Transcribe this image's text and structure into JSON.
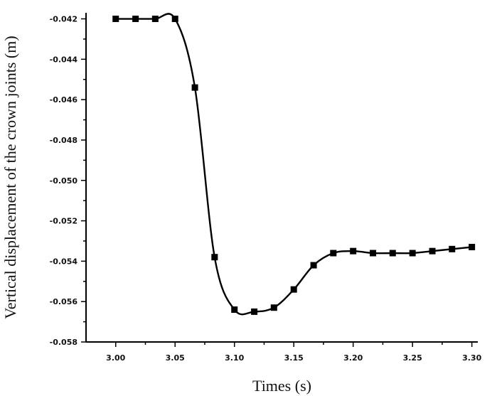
{
  "chart_data": {
    "type": "line",
    "title": "",
    "xlabel": "Times (s)",
    "ylabel": "Vertical displacement of the crown joints (m)",
    "xlim": [
      2.975,
      3.305
    ],
    "ylim": [
      -0.058,
      -0.0417
    ],
    "x_ticks": [
      3.0,
      3.05,
      3.1,
      3.15,
      3.2,
      3.25,
      3.3
    ],
    "x_tick_labels": [
      "3.00",
      "3.05",
      "3.10",
      "3.15",
      "3.20",
      "3.25",
      "3.30"
    ],
    "y_ticks": [
      -0.042,
      -0.044,
      -0.046,
      -0.048,
      -0.05,
      -0.052,
      -0.054,
      -0.056,
      -0.058
    ],
    "y_tick_labels": [
      "-0.042",
      "-0.044",
      "-0.046",
      "-0.048",
      "-0.050",
      "-0.052",
      "-0.054",
      "-0.056",
      "-0.058"
    ],
    "grid": false,
    "legend": "none",
    "series": [
      {
        "color": "#000000",
        "marker": "square",
        "x": [
          3.0,
          3.0167,
          3.0333,
          3.05,
          3.0667,
          3.0833,
          3.1,
          3.1167,
          3.1333,
          3.15,
          3.1667,
          3.1833,
          3.2,
          3.2167,
          3.2333,
          3.25,
          3.2667,
          3.2833,
          3.3
        ],
        "y": [
          -0.042,
          -0.042,
          -0.042,
          -0.042,
          -0.0454,
          -0.0538,
          -0.0564,
          -0.0565,
          -0.0563,
          -0.0554,
          -0.0542,
          -0.0536,
          -0.0535,
          -0.0536,
          -0.0536,
          -0.0536,
          -0.0535,
          -0.0534,
          -0.0533
        ]
      }
    ]
  }
}
